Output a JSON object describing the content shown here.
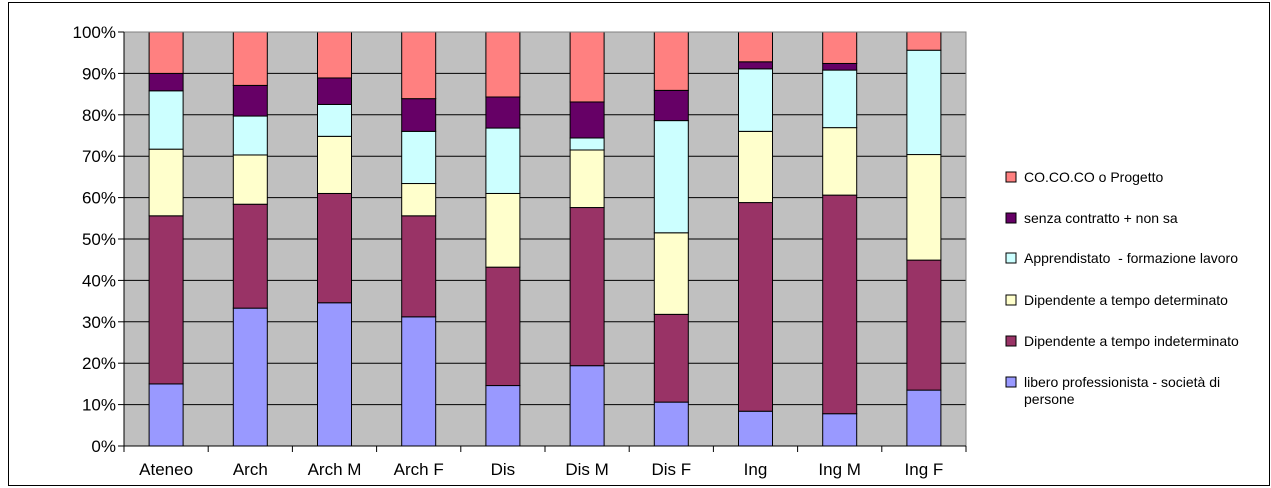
{
  "chart_data": {
    "type": "bar",
    "stacked": "percent",
    "categories": [
      "Ateneo",
      "Arch",
      "Arch M",
      "Arch  F",
      "Dis",
      "Dis M",
      "Dis F",
      "Ing",
      "Ing M",
      "Ing F"
    ],
    "y_ticks": [
      "0%",
      "10%",
      "20%",
      "30%",
      "40%",
      "50%",
      "60%",
      "70%",
      "80%",
      "90%",
      "100%"
    ],
    "ylim": [
      0,
      100
    ],
    "grid": true,
    "legend_position": "right",
    "series": [
      {
        "name": " libero professionista - società di persone",
        "color": "#9999ff",
        "values": [
          15,
          33.3,
          34.6,
          31.2,
          14.6,
          19.4,
          10.6,
          8.4,
          7.8,
          13.5
        ]
      },
      {
        "name": "Dipendente a tempo indeterminato",
        "color": "#993366",
        "values": [
          40.6,
          25.1,
          26.4,
          24.4,
          28.6,
          38.2,
          21.2,
          50.4,
          52.8,
          31.4
        ]
      },
      {
        "name": "Dipendente a tempo determinato",
        "color": "#ffffcc",
        "values": [
          16.1,
          11.9,
          13.8,
          7.8,
          17.8,
          13.9,
          19.7,
          17.2,
          16.3,
          25.5
        ]
      },
      {
        "name": "Apprendistato  - formazione lavoro",
        "color": "#ccffff",
        "values": [
          14.1,
          9.4,
          7.7,
          12.6,
          15.8,
          2.9,
          27.1,
          15.1,
          13.9,
          25.2
        ]
      },
      {
        "name": "senza contratto + non sa",
        "color": "#660066",
        "values": [
          4.2,
          7.4,
          6.4,
          7.9,
          7.5,
          8.7,
          7.3,
          1.7,
          1.6,
          0
        ]
      },
      {
        "name": "CO.CO.CO o Progetto",
        "color": "#ff8080",
        "values": [
          10,
          12.9,
          11.1,
          16.1,
          15.7,
          16.9,
          14.1,
          7.2,
          7.6,
          4.4
        ]
      }
    ]
  }
}
